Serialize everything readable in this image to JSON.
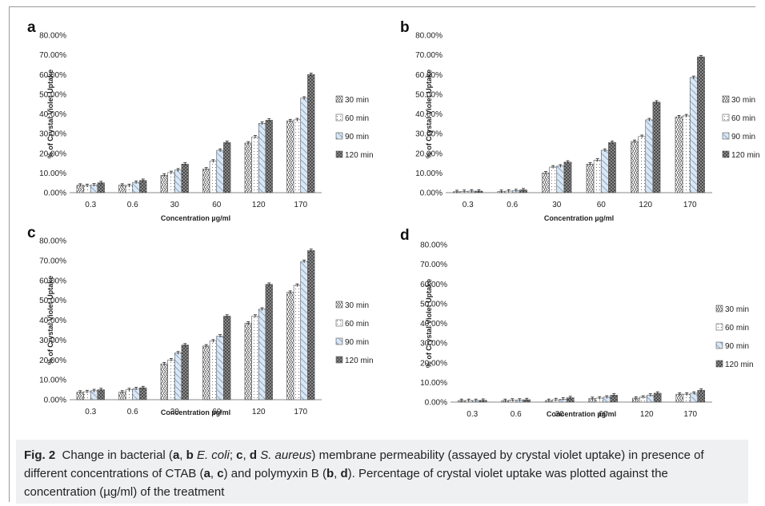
{
  "chart_data": [
    {
      "panel": "a",
      "type": "bar",
      "categories": [
        "0.3",
        "0.6",
        "30",
        "60",
        "120",
        "170"
      ],
      "xlabel": "Concentration µg/ml",
      "ylabel": "% of Crystal Violet Uptake",
      "ylim": [
        0,
        80
      ],
      "yticks": [
        "0.00%",
        "10.00%",
        "20.00%",
        "30.00%",
        "40.00%",
        "50.00%",
        "60.00%",
        "70.00%",
        "80.00%"
      ],
      "series": [
        {
          "name": "30 min",
          "values": [
            3.8,
            3.8,
            8.8,
            12.0,
            25.2,
            36.5
          ]
        },
        {
          "name": "60 min",
          "values": [
            3.6,
            3.6,
            10.2,
            16.0,
            28.3,
            37.0
          ]
        },
        {
          "name": "90 min",
          "values": [
            3.9,
            5.2,
            11.5,
            21.5,
            35.2,
            48.0
          ]
        },
        {
          "name": "120 min",
          "values": [
            5.0,
            6.2,
            14.5,
            25.5,
            36.8,
            60.0
          ]
        }
      ]
    },
    {
      "panel": "b",
      "type": "bar",
      "categories": [
        "0.3",
        "0.6",
        "30",
        "60",
        "120",
        "170"
      ],
      "xlabel": "Concentration µg/ml",
      "ylabel": "% of Crystal Violet Uptake",
      "ylim": [
        0,
        80
      ],
      "yticks": [
        "0.00%",
        "10.00%",
        "20.00%",
        "30.00%",
        "40.00%",
        "50.00%",
        "60.00%",
        "70.00%",
        "80.00%"
      ],
      "series": [
        {
          "name": "30 min",
          "values": [
            0.5,
            0.6,
            10.0,
            14.5,
            26.0,
            38.5
          ]
        },
        {
          "name": "60 min",
          "values": [
            0.6,
            0.8,
            13.0,
            16.5,
            28.5,
            39.0
          ]
        },
        {
          "name": "90 min",
          "values": [
            0.8,
            1.0,
            13.5,
            21.5,
            37.0,
            58.5
          ]
        },
        {
          "name": "120 min",
          "values": [
            0.8,
            1.4,
            15.5,
            25.5,
            46.0,
            69.0
          ]
        }
      ]
    },
    {
      "panel": "c",
      "type": "bar",
      "categories": [
        "0.3",
        "0.6",
        "30",
        "60",
        "120",
        "170"
      ],
      "xlabel": "Concentration µg/ml",
      "ylabel": "% of Crystal Violet Uptake",
      "ylim": [
        0,
        80
      ],
      "yticks": [
        "0.00%",
        "10.00%",
        "20.00%",
        "30.00%",
        "40.00%",
        "50.00%",
        "60.00%",
        "70.00%",
        "80.00%"
      ],
      "series": [
        {
          "name": "30 min",
          "values": [
            3.8,
            3.8,
            18.0,
            27.0,
            38.5,
            54.0
          ]
        },
        {
          "name": "60 min",
          "values": [
            4.0,
            5.0,
            20.0,
            29.5,
            42.0,
            57.5
          ]
        },
        {
          "name": "90 min",
          "values": [
            4.5,
            5.5,
            23.5,
            32.0,
            45.5,
            69.5
          ]
        },
        {
          "name": "120 min",
          "values": [
            5.0,
            6.0,
            27.5,
            42.0,
            58.0,
            75.0
          ]
        }
      ]
    },
    {
      "panel": "d",
      "type": "bar",
      "categories": [
        "0.3",
        "0.6",
        "30",
        "60",
        "120",
        "170"
      ],
      "xlabel": "Concentration µg/ml",
      "ylabel": "% of Crystal Violet Uptake",
      "ylim": [
        0,
        80
      ],
      "yticks": [
        "0.00%",
        "10.00%",
        "20.00%",
        "30.00%",
        "40.00%",
        "50.00%",
        "60.00%",
        "70.00%",
        "80.00%"
      ],
      "series": [
        {
          "name": "30 min",
          "values": [
            0.8,
            0.8,
            0.8,
            1.8,
            2.0,
            4.0
          ]
        },
        {
          "name": "60 min",
          "values": [
            0.8,
            1.0,
            1.2,
            2.0,
            2.5,
            4.0
          ]
        },
        {
          "name": "90 min",
          "values": [
            0.8,
            1.0,
            1.5,
            2.5,
            3.5,
            4.5
          ]
        },
        {
          "name": "120 min",
          "values": [
            0.9,
            1.2,
            2.2,
            3.5,
            4.5,
            6.0
          ]
        }
      ]
    }
  ],
  "caption": {
    "fig_label": "Fig. 2",
    "text_html": "Change in bacterial (<b>a</b>, <b>b</b> <i>E. coli</i>; <b>c</b>, <b>d</b> <i>S. aureus</i>) membrane permeability (assayed by crystal violet uptake) in presence of different concentrations of CTAB (<b>a</b>, <b>c</b>) and polymyxin B (<b>b</b>, <b>d</b>). Percentage of crystal violet uptake was plotted against the concentration (µg/ml) of the treatment"
  }
}
